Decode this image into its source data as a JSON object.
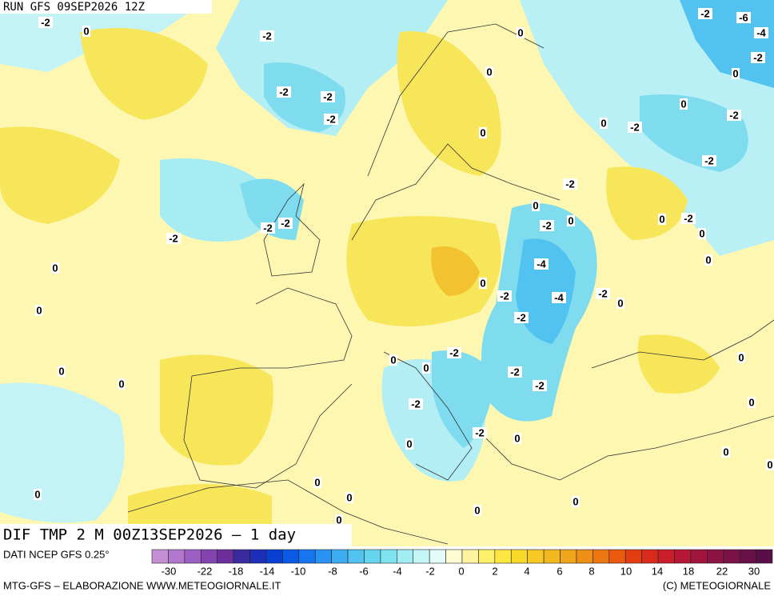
{
  "header": {
    "run": "RUN GFS 09SEP2026 12Z"
  },
  "map": {
    "title": "DIF TMP 2 M 00Z13SEP2026 – 1 day",
    "contour_labels": [
      "-2",
      "0",
      "-2",
      "0",
      "-2",
      "-6",
      "-4",
      "-2",
      "0",
      "0",
      "-2",
      "-2",
      "-2",
      "0",
      "0",
      "-2",
      "-2",
      "0",
      "-2",
      "-2",
      "0",
      "0",
      "-2",
      "0",
      "-2",
      "0",
      "-2",
      "-2",
      "-2",
      "0",
      "0",
      "-4",
      "0",
      "-2",
      "-4",
      "-2",
      "0",
      "0",
      "-2",
      "-2",
      "0",
      "0",
      "0",
      "-2",
      "0",
      "0",
      "-2",
      "-2",
      "0",
      "-2",
      "0",
      "0",
      "0",
      "0",
      "0",
      "0",
      "0",
      "0",
      "0",
      "0"
    ]
  },
  "legend": {
    "source": "DATI NCEP GFS 0.25°",
    "colors": [
      "#c58fd6",
      "#b277cf",
      "#9d5fc4",
      "#8444b0",
      "#6c2f9c",
      "#3a2a9e",
      "#1c2fb8",
      "#0a3fd3",
      "#0a5ae6",
      "#1776ef",
      "#2a92f3",
      "#3eacf3",
      "#52c3f0",
      "#66d6ee",
      "#7fe2ef",
      "#a2edf3",
      "#c4f6f7",
      "#e4fbfb",
      "#fffbd3",
      "#fff3a0",
      "#fff06c",
      "#fde641",
      "#f8d92a",
      "#f6c925",
      "#f3b81f",
      "#f0a51a",
      "#ee8f16",
      "#ec7612",
      "#ea5a10",
      "#e43d12",
      "#d92a1c",
      "#c91e2a",
      "#b61734",
      "#a1143d",
      "#8c1244",
      "#7a1149",
      "#691049",
      "#5a0e47"
    ],
    "ticks": [
      "-30",
      "-22",
      "-18",
      "-14",
      "-10",
      "-8",
      "-6",
      "-4",
      "-2",
      "0",
      "2",
      "4",
      "6",
      "8",
      "10",
      "14",
      "18",
      "22",
      "30"
    ]
  },
  "footer": {
    "left": "MTG-GFS – ELABORAZIONE WWW.METEOGIORNALE.IT",
    "right": "(C) METEOGIORNALE"
  }
}
